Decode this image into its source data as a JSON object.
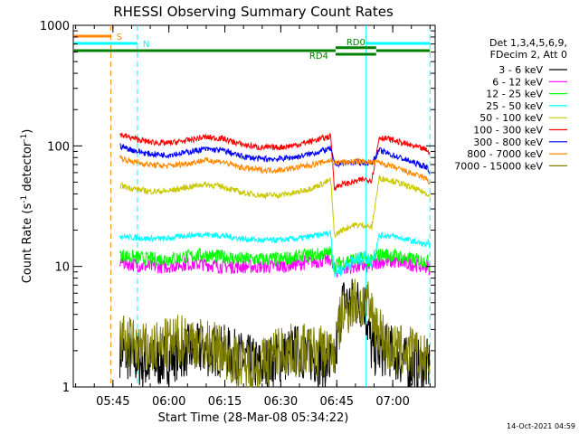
{
  "chart_data": {
    "type": "line",
    "title": "RHESSI Observing Summary Count Rates",
    "xlabel": "Start Time (28-Mar-08 05:34:22)",
    "ylabel_main": "Count Rate (s",
    "ylabel_sup1": "-1",
    "ylabel_mid": " detector",
    "ylabel_sup2": "-1",
    "ylabel_end": ")",
    "yscale": "log",
    "ylim": [
      1,
      1000
    ],
    "x_unit": "minutes since 05:34:22",
    "xlim": [
      0,
      97
    ],
    "x_ticks": [
      {
        "x": 10.63,
        "label": "05:45"
      },
      {
        "x": 25.63,
        "label": "06:00"
      },
      {
        "x": 40.63,
        "label": "06:15"
      },
      {
        "x": 55.63,
        "label": "06:30"
      },
      {
        "x": 70.63,
        "label": "06:45"
      },
      {
        "x": 85.63,
        "label": "07:00"
      }
    ],
    "y_ticks": [
      {
        "y": 1,
        "label": "1"
      },
      {
        "y": 10,
        "label": "10"
      },
      {
        "y": 100,
        "label": "100"
      },
      {
        "y": 1000,
        "label": "1000"
      }
    ],
    "legend_header": [
      "Det 1,3,4,5,6,9,",
      "FDecim 2, Att 0"
    ],
    "legend_placement": "right",
    "series": [
      {
        "name": "3 - 6 keV",
        "color": "#000000",
        "x": [
          12.5,
          20,
          30,
          40,
          50,
          60,
          70,
          72,
          75,
          78,
          80,
          85,
          90,
          95.5
        ],
        "y": [
          2,
          1.5,
          2,
          2,
          1.5,
          2,
          1.5,
          5,
          5,
          5,
          2,
          2,
          1.5,
          1.5
        ]
      },
      {
        "name": "6 - 12 keV",
        "color": "#ff00ff",
        "x": [
          12.5,
          15,
          20,
          25,
          30,
          35,
          40,
          45,
          50,
          55,
          60,
          65,
          69,
          70,
          72,
          75,
          78,
          80,
          82,
          85,
          90,
          95,
          95.5
        ],
        "y": [
          11,
          10.5,
          10,
          10,
          10.5,
          10.5,
          10,
          10,
          10,
          10,
          10.5,
          11,
          11.5,
          9,
          9.5,
          10,
          10,
          10,
          11,
          11,
          10.5,
          10,
          9.5
        ]
      },
      {
        "name": "12 - 25 keV",
        "color": "#00ff00",
        "x": [
          12.5,
          15,
          20,
          25,
          30,
          35,
          40,
          45,
          50,
          55,
          60,
          65,
          69,
          70,
          72,
          75,
          78,
          80,
          82,
          85,
          90,
          95,
          95.5
        ],
        "y": [
          12.5,
          12,
          11.5,
          11.5,
          12,
          12.5,
          12,
          11.5,
          11.5,
          11.5,
          12,
          12.5,
          13,
          10,
          11,
          11.5,
          11.5,
          11,
          12.5,
          12.5,
          11.5,
          11,
          10
        ]
      },
      {
        "name": "25 - 50 keV",
        "color": "#00ffff",
        "x": [
          12.5,
          15,
          20,
          25,
          30,
          35,
          40,
          45,
          50,
          55,
          60,
          65,
          69,
          70,
          72,
          75,
          78,
          80,
          82,
          85,
          90,
          95,
          95.5
        ],
        "y": [
          18,
          17.5,
          17,
          17,
          18,
          18.5,
          18,
          17,
          16.5,
          16.5,
          17,
          18,
          19,
          9,
          9.5,
          11,
          12,
          11,
          18,
          18,
          16.5,
          15,
          14
        ]
      },
      {
        "name": "50 - 100 keV",
        "color": "#c8c800",
        "x": [
          12.5,
          15,
          20,
          25,
          30,
          35,
          40,
          45,
          50,
          55,
          60,
          65,
          69,
          70,
          72,
          75,
          78,
          80,
          82,
          85,
          90,
          95,
          95.5
        ],
        "y": [
          47,
          45,
          42,
          42,
          45,
          48,
          46,
          41,
          39,
          39,
          41,
          46,
          52,
          18,
          20,
          22,
          22,
          21,
          54,
          52,
          46,
          40,
          38
        ]
      },
      {
        "name": "100 - 300 keV",
        "color": "#ff0000",
        "x": [
          12.5,
          15,
          20,
          25,
          30,
          35,
          40,
          45,
          50,
          55,
          60,
          65,
          69,
          70,
          72,
          75,
          78,
          80,
          82,
          85,
          90,
          95,
          95.5
        ],
        "y": [
          125,
          118,
          108,
          105,
          110,
          118,
          115,
          103,
          97,
          97,
          102,
          112,
          120,
          45,
          48,
          50,
          53,
          52,
          118,
          113,
          102,
          92,
          85
        ]
      },
      {
        "name": "300 - 800 keV",
        "color": "#0000ff",
        "x": [
          12.5,
          15,
          20,
          25,
          30,
          35,
          40,
          45,
          50,
          55,
          60,
          65,
          69,
          70,
          72,
          75,
          78,
          80,
          82,
          85,
          90,
          95,
          95.5
        ],
        "y": [
          100,
          94,
          86,
          84,
          88,
          94,
          92,
          82,
          78,
          78,
          81,
          88,
          95,
          70,
          72,
          73,
          73,
          72,
          92,
          85,
          75,
          66,
          60
        ]
      },
      {
        "name": "800 - 7000 keV",
        "color": "#ff8800",
        "x": [
          12.5,
          15,
          20,
          25,
          30,
          35,
          40,
          45,
          50,
          55,
          60,
          65,
          69,
          70,
          72,
          75,
          78,
          80,
          82,
          85,
          90,
          95,
          95.5
        ],
        "y": [
          80,
          75,
          70,
          68,
          71,
          76,
          74,
          66,
          63,
          63,
          66,
          71,
          76,
          72,
          73,
          74,
          74,
          73,
          73,
          68,
          60,
          53,
          48
        ]
      },
      {
        "name": "7000 - 15000 keV",
        "color": "#808000",
        "x": [
          12.5,
          20,
          30,
          40,
          45,
          50,
          55,
          60,
          65,
          70,
          72,
          75,
          78,
          80,
          85,
          90,
          95.5
        ],
        "y": [
          2.5,
          2,
          2.5,
          2,
          1.5,
          1.5,
          2,
          2,
          2,
          2,
          4,
          5,
          5,
          4,
          2,
          2,
          1.5
        ]
      }
    ],
    "annotations": {
      "vertical_lines": [
        {
          "x": 10.1,
          "color": "#ff8800",
          "style": "dashed"
        },
        {
          "x": 17.2,
          "color": "#00ffff",
          "style": "dashed"
        },
        {
          "x": 78.5,
          "color": "#00ffff",
          "style": "solid"
        },
        {
          "x": 95.6,
          "color": "#00ffff",
          "style": "dashed"
        }
      ],
      "bars": [
        {
          "label": "S",
          "color": "#ff8800",
          "x_start": 0.2,
          "x_end": 10.1,
          "row": 1
        },
        {
          "label": "N",
          "color": "#00ffff",
          "x_start": 0.2,
          "x_end": 17.2,
          "row": 2
        },
        {
          "label": "N",
          "color": "#00ffff",
          "x_start": 78.5,
          "x_end": 95.6,
          "row": 2
        },
        {
          "label": "",
          "color": "#008000",
          "x_start": 0.2,
          "x_end": 70.3,
          "row": 3
        },
        {
          "label": "RD0",
          "color": "#008000",
          "x_start": 70.3,
          "x_end": 81.2,
          "row": 2.6
        },
        {
          "label": "",
          "color": "#008000",
          "x_start": 81.2,
          "x_end": 95.6,
          "row": 3
        },
        {
          "label": "RD4",
          "color": "#008000",
          "x_start": 70.3,
          "x_end": 81.2,
          "row": 3.5
        }
      ]
    },
    "footer_timestamp": "14-Oct-2021 04:59",
    "grid": false
  }
}
